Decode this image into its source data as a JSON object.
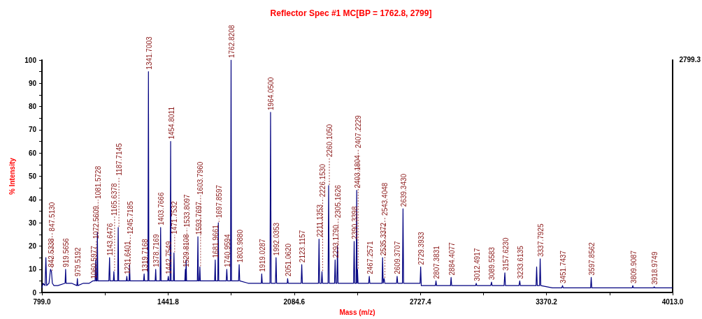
{
  "chart_data": {
    "type": "line",
    "title": "Reflector Spec #1 MC[BP = 1762.8, 2799]",
    "xlabel": "Mass (m/z)",
    "ylabel": "% Intensity",
    "xlim": [
      799,
      4013
    ],
    "xticks": [
      {
        "value": 799,
        "label": "799.0"
      },
      {
        "value": 1120.4,
        "label": null
      },
      {
        "value": 1441.8,
        "label": "1441.8"
      },
      {
        "value": 1763.2,
        "label": null
      },
      {
        "value": 2084.6,
        "label": "2084.6"
      },
      {
        "value": 2406,
        "label": null
      },
      {
        "value": 2727.4,
        "label": "2727.4"
      },
      {
        "value": 3048.8,
        "label": null
      },
      {
        "value": 3370.2,
        "label": "3370.2"
      },
      {
        "value": 3691.6,
        "label": null
      },
      {
        "value": 4013,
        "label": "4013.0"
      }
    ],
    "ylim": [
      0,
      100
    ],
    "yticks": [
      0,
      {
        "value": 5,
        "label": null
      },
      10,
      {
        "value": 15,
        "label": null
      },
      20,
      {
        "value": 25,
        "label": null
      },
      30,
      {
        "value": 35,
        "label": null
      },
      40,
      {
        "value": 45,
        "label": null
      },
      50,
      {
        "value": 55,
        "label": null
      },
      60,
      {
        "value": 65,
        "label": null
      },
      70,
      {
        "value": 75,
        "label": null
      },
      80,
      {
        "value": 85,
        "label": null
      },
      90,
      {
        "value": 95,
        "label": null
      },
      100
    ],
    "marker": "none",
    "line_style": "solid",
    "series": [
      {
        "color": "#000080",
        "x": [
          799,
          805,
          815,
          819,
          823,
          835,
          842.5,
          847.5,
          852,
          860,
          880,
          917,
          919.6,
          922,
          950,
          977,
          979.5,
          982,
          1010,
          1040,
          1058,
          1060.6,
          1063,
          1070,
          1072.6,
          1075,
          1079,
          1081.6,
          1084,
          1110,
          1140,
          1143.6,
          1146,
          1163,
          1165.6,
          1168,
          1185,
          1187.7,
          1190,
          1215,
          1229,
          1231.6,
          1234,
          1243,
          1245.7,
          1248,
          1280,
          1317,
          1319.7,
          1322,
          1339,
          1341.7,
          1344,
          1370,
          1376,
          1378.7,
          1381,
          1401,
          1403.8,
          1406,
          1425,
          1440,
          1442.8,
          1446,
          1452,
          1454.8,
          1457,
          1469,
          1471.8,
          1474,
          1500,
          1527,
          1529.8,
          1531.5,
          1533.8,
          1536,
          1570,
          1591,
          1593.8,
          1596,
          1601,
          1603.8,
          1606,
          1650,
          1679,
          1682,
          1684,
          1695,
          1697.9,
          1700,
          1738,
          1741,
          1744,
          1760,
          1762.8,
          1765,
          1780,
          1801,
          1804,
          1807,
          1850,
          1917,
          1919,
          1922,
          1961,
          1964,
          1967,
          1989,
          1992,
          1995,
          2020,
          2049,
          2051,
          2054,
          2090,
          2120,
          2123,
          2126,
          2170,
          2208,
          2211,
          2214,
          2223,
          2226,
          2229,
          2257,
          2260,
          2263,
          2290,
          2293,
          2296,
          2302,
          2305,
          2308,
          2350,
          2387,
          2390,
          2393,
          2400,
          2403,
          2405,
          2407,
          2410,
          2440,
          2464,
          2467,
          2470,
          2500,
          2532,
          2535,
          2538,
          2540,
          2543,
          2546,
          2580,
          2606,
          2609,
          2612,
          2636,
          2639,
          2642,
          2680,
          2726,
          2729,
          2732,
          2770,
          2804,
          2807,
          2810,
          2850,
          2881,
          2884,
          2887,
          2950,
          3009,
          3012,
          3015,
          3050,
          3086,
          3090,
          3093,
          3120,
          3154,
          3158,
          3161,
          3200,
          3230,
          3234,
          3237,
          3290,
          3317,
          3320,
          3323,
          3335,
          3338,
          3341,
          3400,
          3448,
          3452,
          3455,
          3520,
          3595,
          3598,
          3601,
          3700,
          3807,
          3810,
          3813,
          3870,
          3916,
          3919,
          3922,
          4013
        ],
        "values": [
          2,
          4,
          3,
          15,
          3,
          4,
          10,
          9,
          4,
          3,
          3,
          4,
          10,
          4,
          4,
          3,
          6,
          3,
          4,
          4,
          5,
          5,
          5,
          5,
          14,
          5,
          5,
          26,
          5,
          5,
          5,
          15,
          5,
          5,
          9,
          5,
          5,
          28,
          5,
          5,
          5,
          7,
          5,
          5,
          12,
          5,
          5,
          5,
          8,
          5,
          5,
          95,
          5,
          5,
          5,
          10,
          5,
          5,
          28,
          5,
          5,
          5,
          7,
          5,
          5,
          65,
          5,
          5,
          17,
          5,
          5,
          5,
          10,
          5,
          14,
          5,
          5,
          5,
          24,
          5,
          5,
          11,
          5,
          5,
          5,
          14,
          5,
          5,
          30,
          5,
          5,
          10,
          5,
          5,
          100,
          5,
          5,
          5,
          12,
          5,
          4,
          4,
          8,
          4,
          4,
          77.5,
          4,
          4,
          15,
          4,
          4,
          4,
          6,
          4,
          4,
          4,
          12,
          4,
          4,
          4,
          23,
          4,
          4,
          9,
          4,
          4,
          46,
          4,
          4,
          14,
          4,
          4,
          20,
          4,
          4,
          4,
          22,
          4,
          4,
          44,
          4,
          10,
          4,
          4,
          4,
          7,
          4,
          4,
          4,
          15,
          4,
          4,
          6,
          4,
          4,
          4,
          7,
          4,
          4,
          36,
          4,
          4,
          4,
          11,
          3,
          3,
          3,
          5,
          3,
          3,
          3,
          6.5,
          3,
          3,
          3,
          4,
          3,
          3,
          3,
          4.5,
          3,
          3,
          3,
          8.5,
          3,
          3,
          3,
          5,
          3,
          3,
          3,
          11,
          3,
          3,
          14.5,
          3,
          2,
          2,
          3,
          2,
          2,
          2,
          6.5,
          2,
          2,
          2,
          3,
          2,
          2,
          2,
          2.5,
          2,
          2
        ]
      }
    ],
    "annotations": [
      "2799.3",
      {
        "text": "842.5338",
        "x": 842.5,
        "y": 10
      },
      {
        "text": "847.5130",
        "x": 847.5,
        "y": 9
      },
      {
        "text": "919.5656",
        "x": 919.6,
        "y": 10
      },
      {
        "text": "979.5192",
        "x": 979.5,
        "y": 6
      },
      {
        "text": "1060.5977",
        "x": 1060.6,
        "y": 5
      },
      {
        "text": "1072.5609",
        "x": 1072.6,
        "y": 14
      },
      {
        "text": "1081.5728",
        "x": 1081.6,
        "y": 26
      },
      {
        "text": "1143.6476",
        "x": 1143.6,
        "y": 15
      },
      {
        "text": "1165.6378",
        "x": 1165.6,
        "y": 9
      },
      {
        "text": "1187.7145",
        "x": 1187.7,
        "y": 28
      },
      {
        "text": "1231.6401",
        "x": 1231.6,
        "y": 7
      },
      {
        "text": "1245.7185",
        "x": 1245.7,
        "y": 12
      },
      {
        "text": "1319.7168",
        "x": 1319.7,
        "y": 8
      },
      {
        "text": "1341.7003",
        "x": 1341.7,
        "y": 95
      },
      {
        "text": "1378.7169",
        "x": 1378.7,
        "y": 10
      },
      {
        "text": "1403.7666",
        "x": 1403.8,
        "y": 28
      },
      {
        "text": "1442.7549",
        "x": 1442.8,
        "y": 7
      },
      {
        "text": "1454.8011",
        "x": 1454.8,
        "y": 65
      },
      {
        "text": "1471.7532",
        "x": 1471.8,
        "y": 17
      },
      {
        "text": "1529.8108",
        "x": 1529.8,
        "y": 10
      },
      {
        "text": "1533.8097",
        "x": 1533.8,
        "y": 14
      },
      {
        "text": "1593.7697",
        "x": 1593.8,
        "y": 24
      },
      {
        "text": "1603.7960",
        "x": 1603.8,
        "y": 11
      },
      {
        "text": "1681.9661",
        "x": 1682,
        "y": 14
      },
      {
        "text": "1697.8597",
        "x": 1697.9,
        "y": 30
      },
      {
        "text": "1740.9594",
        "x": 1741,
        "y": 10
      },
      {
        "text": "1762.8208",
        "x": 1762.8,
        "y": 100
      },
      {
        "text": "1803.9880",
        "x": 1804,
        "y": 12
      },
      {
        "text": "1919.0287",
        "x": 1919,
        "y": 8
      },
      {
        "text": "1964.0500",
        "x": 1964,
        "y": 77.5
      },
      {
        "text": "1992.0353",
        "x": 1992,
        "y": 15
      },
      {
        "text": "2051.0620",
        "x": 2051,
        "y": 6
      },
      {
        "text": "2123.1157",
        "x": 2123,
        "y": 12
      },
      {
        "text": "2211.1353",
        "x": 2211,
        "y": 23
      },
      {
        "text": "2226.1530",
        "x": 2226,
        "y": 9
      },
      {
        "text": "2260.1050",
        "x": 2260,
        "y": 46
      },
      {
        "text": "2293.1790",
        "x": 2293,
        "y": 14
      },
      {
        "text": "2305.1626",
        "x": 2305,
        "y": 20
      },
      {
        "text": "2390.3398",
        "x": 2390,
        "y": 22
      },
      {
        "text": "2403.1804",
        "x": 2403,
        "y": 44
      },
      {
        "text": "2407.2229",
        "x": 2407,
        "y": 10
      },
      {
        "text": "2467.2571",
        "x": 2467,
        "y": 7
      },
      {
        "text": "2535.3372",
        "x": 2535,
        "y": 15
      },
      {
        "text": "2543.4048",
        "x": 2543,
        "y": 6
      },
      {
        "text": "2609.3707",
        "x": 2609,
        "y": 7
      },
      {
        "text": "2639.3430",
        "x": 2639,
        "y": 36
      },
      {
        "text": "2729.3933",
        "x": 2729,
        "y": 11
      },
      {
        "text": "2807.3831",
        "x": 2807,
        "y": 5
      },
      {
        "text": "2884.4077",
        "x": 2884,
        "y": 6.5
      },
      {
        "text": "3012.4917",
        "x": 3012,
        "y": 4
      },
      {
        "text": "3089.5583",
        "x": 3090,
        "y": 4.5
      },
      {
        "text": "3157.6230",
        "x": 3158,
        "y": 8.5
      },
      {
        "text": "3233.6135",
        "x": 3234,
        "y": 5
      },
      {
        "text": "3337.7925",
        "x": 3338,
        "y": 14.5
      },
      {
        "text": "3451.7437",
        "x": 3452,
        "y": 3
      },
      {
        "text": "3597.8562",
        "x": 3598,
        "y": 6.5
      },
      {
        "text": "3809.9087",
        "x": 3810,
        "y": 3
      },
      {
        "text": "3918.9749",
        "x": 3919,
        "y": 2.5
      }
    ]
  }
}
